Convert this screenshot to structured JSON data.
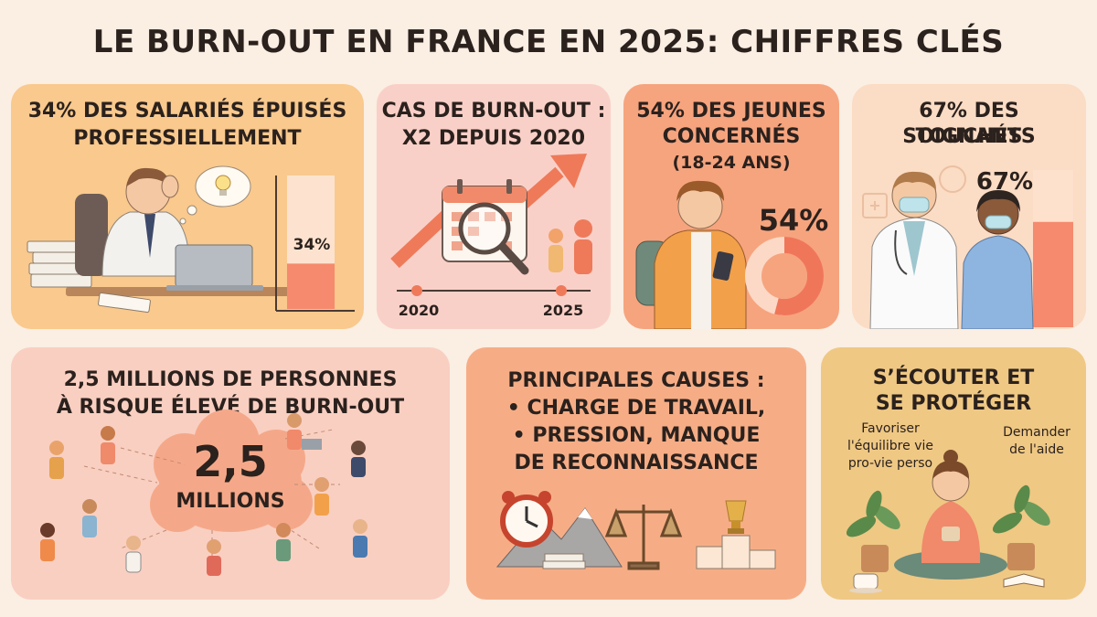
{
  "title": "LE BURN-OUT EN FRANCE EN 2025: CHIFFRES CLÉS",
  "cards": {
    "salaries": {
      "heading_line1": "34% DES SALARIÉS ÉPUISÉS",
      "heading_line2": "PROFESSIELLEMENT",
      "bar_label": "34%",
      "value_fraction": 0.34
    },
    "cas": {
      "heading_line1": "CAS DE BURN-OUT :",
      "heading_line2": "X2 DEPUIS 2020",
      "year_start": "2020",
      "year_end": "2025"
    },
    "jeunes": {
      "heading_line1": "54% DES JEUNES",
      "heading_line2": "CONCERNÉS",
      "heading_line3": "(18-24 ANS)",
      "value_label": "54%",
      "value_fraction": 0.54
    },
    "soignants": {
      "heading_line1": "67% DES SOIGNANTS",
      "heading_line2": "TOUCHÉS",
      "value_label": "67%",
      "value_fraction": 0.67
    },
    "risque": {
      "heading_line1": "2,5 MILLIONS DE PERSONNES",
      "heading_line2": "À RISQUE ÉLEVÉ DE BURN-OUT",
      "cloud_value": "2,5",
      "cloud_unit": "MILLIONS"
    },
    "causes": {
      "heading": "PRINCIPALES CAUSES :",
      "items": [
        "• CHARGE DE TRAVAIL,",
        "• PRESSION, MANQUE",
        "DE RECONNAISSANCE"
      ]
    },
    "ecouter": {
      "heading_line1": "S’ÉCOUTER ET",
      "heading_line2": "SE PROTÉGER",
      "tip_left": [
        "Favoriser",
        "l'équilibre vie",
        "pro-vie perso"
      ],
      "tip_right": [
        "Demander",
        "de l'aide"
      ]
    }
  },
  "colors": {
    "accent": "#f0765a",
    "bar_fill": "#f58a6e",
    "bar_empty": "#fde3cf",
    "text": "#2b211d"
  }
}
